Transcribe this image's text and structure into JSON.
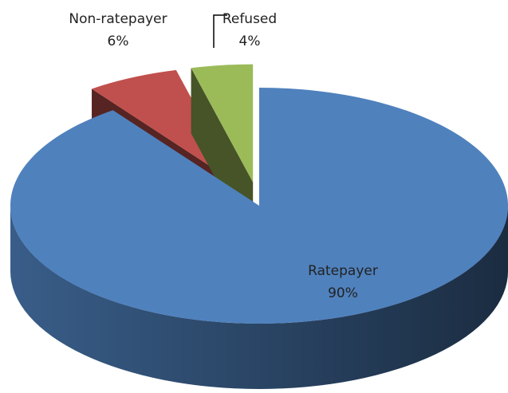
{
  "chart_data": {
    "type": "pie",
    "categories": [
      "Ratepayer",
      "Non-ratepayer",
      "Refused"
    ],
    "values": [
      90,
      6,
      4
    ],
    "value_labels": [
      "90%",
      "6%",
      "4%"
    ],
    "colors": [
      "#4f81bd",
      "#c0504d",
      "#9bbb59"
    ]
  }
}
